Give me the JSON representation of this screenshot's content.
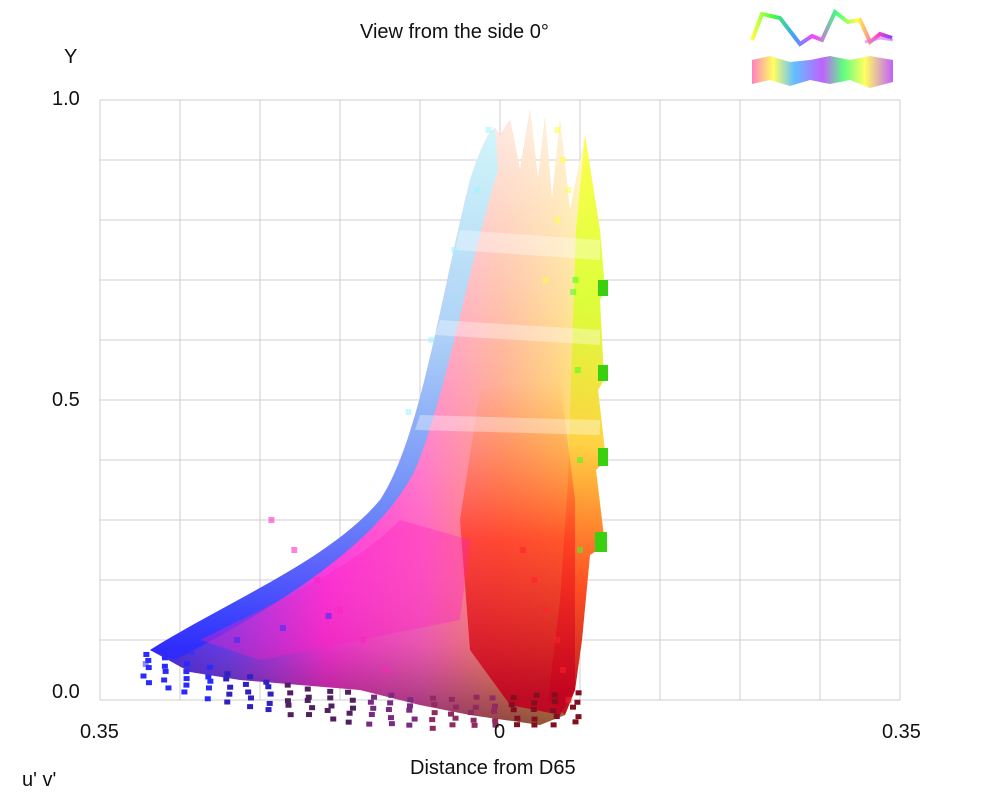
{
  "chart_data": {
    "type": "scatter",
    "title": "View from the side 0°",
    "xlabel": "Distance from D65",
    "ylabel": "Y",
    "corner_label": "u' v'",
    "x_ticks": [
      "0.35",
      "0",
      "0.35"
    ],
    "y_ticks": [
      "1.0",
      "0.5",
      "0.0"
    ],
    "xlim": [
      -0.35,
      0.35
    ],
    "ylim": [
      0.0,
      1.0
    ],
    "grid": true,
    "legend": "top-right thumbnail strips",
    "series": [
      {
        "color": "#ff2030",
        "x": [
          0.06,
          0.055,
          0.05,
          0.04,
          0.03,
          0.02
        ],
        "y": [
          0.0,
          0.05,
          0.1,
          0.15,
          0.2,
          0.25
        ]
      },
      {
        "color": "#ff20c0",
        "x": [
          -0.1,
          -0.12,
          -0.14,
          -0.16,
          -0.18,
          -0.2
        ],
        "y": [
          0.05,
          0.1,
          0.15,
          0.2,
          0.25,
          0.3
        ]
      },
      {
        "color": "#3030ff",
        "x": [
          -0.31,
          -0.27,
          -0.23,
          -0.19,
          -0.15
        ],
        "y": [
          0.06,
          0.08,
          0.1,
          0.12,
          0.14
        ]
      },
      {
        "color": "#40ff20",
        "x": [
          0.07,
          0.07,
          0.068,
          0.066,
          0.064
        ],
        "y": [
          0.25,
          0.4,
          0.55,
          0.7,
          0.68
        ]
      },
      {
        "color": "#ffff40",
        "x": [
          0.05,
          0.055,
          0.06,
          0.05,
          0.04
        ],
        "y": [
          0.95,
          0.9,
          0.85,
          0.8,
          0.7
        ]
      },
      {
        "color": "#a0f0ff",
        "x": [
          -0.01,
          -0.02,
          -0.04,
          -0.06,
          -0.08
        ],
        "y": [
          0.95,
          0.85,
          0.75,
          0.6,
          0.48
        ]
      }
    ],
    "colors": {
      "grid": "#cfcfcf",
      "blue": "#2a2aff",
      "magenta": "#ff2ad0",
      "red": "#ff2020",
      "yellow": "#ffff30",
      "green": "#30e010",
      "cyan": "#b8f4ff",
      "dark_purple": "#502060",
      "dark_red": "#801020"
    }
  }
}
